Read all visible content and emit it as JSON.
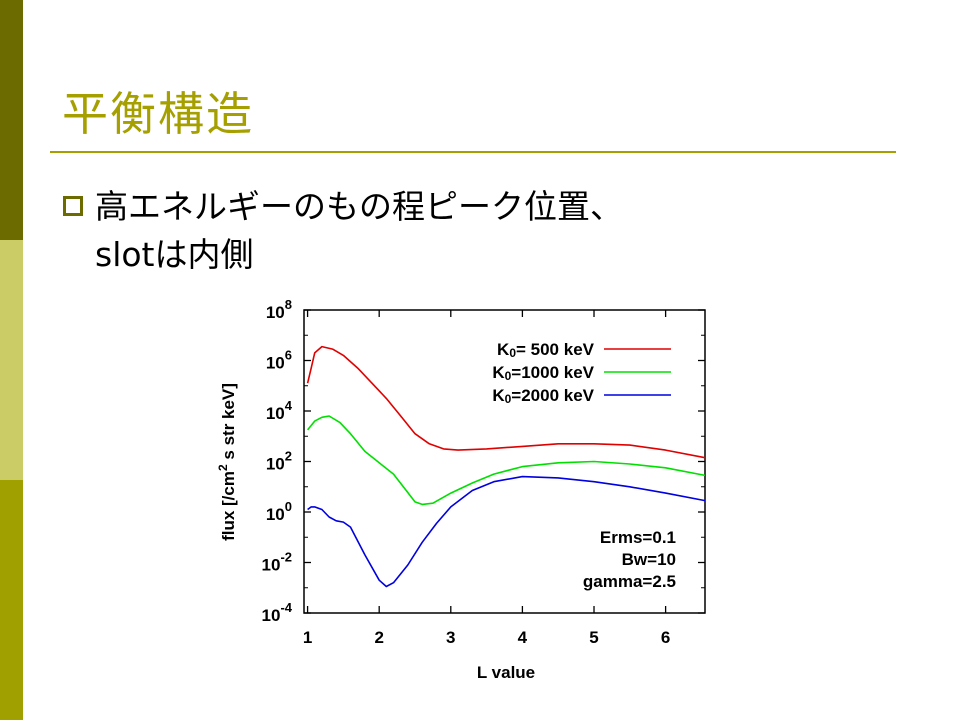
{
  "slide": {
    "title": "平衡構造",
    "bullet_line1": "高エネルギーのもの程ピーク位置、",
    "bullet_line2": "slotは内側"
  },
  "colors": {
    "sidebar_top": "#6b6b00",
    "sidebar_mid": "#cccc66",
    "sidebar_bottom": "#a0a000",
    "title": "#a5a000",
    "series_red": "#e00000",
    "series_green": "#00e000",
    "series_blue": "#0000e0"
  },
  "icons": {
    "bullet": "hollow-square-bullet-icon"
  },
  "chart_data": {
    "type": "line",
    "xlabel": "L value",
    "ylabel_pre": "flux [/cm",
    "ylabel_sup": "2",
    "ylabel_post": " s str keV]",
    "xlim": [
      0.95,
      6.55
    ],
    "ylim_log10": [
      -4,
      8
    ],
    "y_scale": "log",
    "grid": false,
    "legend_position": "top-right",
    "x_ticks": [
      1,
      2,
      3,
      4,
      5,
      6
    ],
    "x_tick_labels": [
      "1",
      "2",
      "3",
      "4",
      "5",
      "6"
    ],
    "y_ticks_log10": [
      -4,
      -2,
      0,
      2,
      4,
      6,
      8
    ],
    "y_tick_labels": [
      {
        "base": "10",
        "exp": "-4"
      },
      {
        "base": "10",
        "exp": "-2"
      },
      {
        "base": "10",
        "exp": "0"
      },
      {
        "base": "10",
        "exp": "2"
      },
      {
        "base": "10",
        "exp": "4"
      },
      {
        "base": "10",
        "exp": "6"
      },
      {
        "base": "10",
        "exp": "8"
      }
    ],
    "series": [
      {
        "name_pre": "K",
        "name_sub": "0",
        "name_post": "=  500 keV",
        "color": "#e00000",
        "x": [
          1.0,
          1.05,
          1.1,
          1.2,
          1.35,
          1.5,
          1.7,
          1.9,
          2.1,
          2.3,
          2.5,
          2.7,
          2.9,
          3.1,
          3.5,
          4.0,
          4.5,
          5.0,
          5.5,
          6.0,
          6.55
        ],
        "log10_y": [
          5.1,
          5.7,
          6.3,
          6.55,
          6.45,
          6.2,
          5.7,
          5.1,
          4.5,
          3.8,
          3.1,
          2.7,
          2.5,
          2.45,
          2.5,
          2.6,
          2.7,
          2.7,
          2.65,
          2.45,
          2.15
        ]
      },
      {
        "name_pre": "K",
        "name_sub": "0",
        "name_post": "=1000 keV",
        "color": "#00e000",
        "x": [
          1.0,
          1.1,
          1.2,
          1.3,
          1.45,
          1.6,
          1.8,
          2.0,
          2.2,
          2.35,
          2.5,
          2.6,
          2.75,
          3.0,
          3.3,
          3.6,
          4.0,
          4.5,
          5.0,
          5.5,
          6.0,
          6.55
        ],
        "log10_y": [
          3.25,
          3.6,
          3.75,
          3.8,
          3.55,
          3.1,
          2.4,
          1.95,
          1.5,
          0.95,
          0.4,
          0.3,
          0.35,
          0.75,
          1.15,
          1.5,
          1.8,
          1.95,
          2.0,
          1.9,
          1.75,
          1.45
        ]
      },
      {
        "name_pre": "K",
        "name_sub": "0",
        "name_post": "=2000 keV",
        "color": "#0000e0",
        "x": [
          1.0,
          1.05,
          1.1,
          1.2,
          1.3,
          1.4,
          1.5,
          1.6,
          1.8,
          2.0,
          2.1,
          2.2,
          2.4,
          2.6,
          2.8,
          3.0,
          3.3,
          3.6,
          4.0,
          4.5,
          5.0,
          5.5,
          6.0,
          6.55
        ],
        "log10_y": [
          0.1,
          0.2,
          0.2,
          0.1,
          -0.2,
          -0.35,
          -0.4,
          -0.6,
          -1.7,
          -2.7,
          -2.95,
          -2.8,
          -2.1,
          -1.2,
          -0.45,
          0.2,
          0.85,
          1.2,
          1.4,
          1.35,
          1.2,
          1.0,
          0.75,
          0.45
        ]
      }
    ],
    "annotations": [
      "Erms=0.1",
      "Bw=10",
      "gamma=2.5"
    ]
  }
}
